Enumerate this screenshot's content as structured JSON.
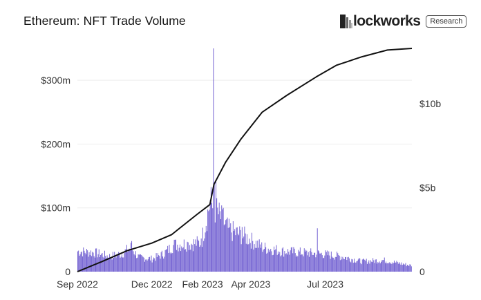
{
  "header": {
    "title": "Ethereum: NFT Trade Volume",
    "brand_name": "lockworks",
    "brand_badge": "Research"
  },
  "chart_data": {
    "type": "bar",
    "title": "Ethereum: NFT Trade Volume",
    "x_start": "2022-09-01",
    "x_end": "2023-10-15",
    "x_ticks": [
      {
        "date": "2022-09-01",
        "label": "Sep 2022"
      },
      {
        "date": "2022-12-01",
        "label": "Dec 2022"
      },
      {
        "date": "2023-02-01",
        "label": "Feb 2023"
      },
      {
        "date": "2023-04-01",
        "label": "Apr 2023"
      },
      {
        "date": "2023-07-01",
        "label": "Jul 2023"
      }
    ],
    "left_axis": {
      "ylim": [
        0,
        350
      ],
      "ticks": [
        0,
        100,
        200,
        300
      ],
      "tick_labels": [
        "0",
        "$100m",
        "$200m",
        "$300m"
      ]
    },
    "right_axis": {
      "ylim": [
        0,
        13.3
      ],
      "ticks": [
        0,
        5,
        10
      ],
      "tick_labels": [
        "0",
        "$5b",
        "$10b"
      ]
    },
    "grid": true,
    "bar_color": "#6d5bd0",
    "line_color": "#111111",
    "bars_daily_keypoints": [
      {
        "date": "2022-09-01",
        "value": 32
      },
      {
        "date": "2022-09-20",
        "value": 30
      },
      {
        "date": "2022-10-10",
        "value": 24
      },
      {
        "date": "2022-10-25",
        "value": 28
      },
      {
        "date": "2022-11-05",
        "value": 38
      },
      {
        "date": "2022-11-15",
        "value": 22
      },
      {
        "date": "2022-12-01",
        "value": 20
      },
      {
        "date": "2022-12-15",
        "value": 28
      },
      {
        "date": "2022-12-28",
        "value": 42
      },
      {
        "date": "2023-01-15",
        "value": 44
      },
      {
        "date": "2023-01-30",
        "value": 45
      },
      {
        "date": "2023-02-10",
        "value": 110
      },
      {
        "date": "2023-02-20",
        "value": 90
      },
      {
        "date": "2023-03-05",
        "value": 65
      },
      {
        "date": "2023-03-25",
        "value": 55
      },
      {
        "date": "2023-04-15",
        "value": 38
      },
      {
        "date": "2023-05-10",
        "value": 32
      },
      {
        "date": "2023-06-01",
        "value": 30
      },
      {
        "date": "2023-06-25",
        "value": 28
      },
      {
        "date": "2023-07-20",
        "value": 24
      },
      {
        "date": "2023-08-15",
        "value": 16
      },
      {
        "date": "2023-09-10",
        "value": 18
      },
      {
        "date": "2023-10-12",
        "value": 10
      }
    ],
    "bar_spikes": [
      {
        "date": "2022-11-06",
        "value": 48
      },
      {
        "date": "2022-12-28",
        "value": 50
      },
      {
        "date": "2023-01-14",
        "value": 46
      },
      {
        "date": "2023-01-30",
        "value": 52
      },
      {
        "date": "2023-02-14",
        "value": 350
      },
      {
        "date": "2023-02-15",
        "value": 140
      },
      {
        "date": "2023-02-17",
        "value": 142
      },
      {
        "date": "2023-02-26",
        "value": 100
      },
      {
        "date": "2023-03-21",
        "value": 70
      },
      {
        "date": "2023-06-21",
        "value": 68
      }
    ],
    "cumulative_line_keypoints": [
      {
        "date": "2022-09-01",
        "value": 0
      },
      {
        "date": "2022-10-01",
        "value": 0.6
      },
      {
        "date": "2022-11-01",
        "value": 1.25
      },
      {
        "date": "2022-12-01",
        "value": 1.7
      },
      {
        "date": "2022-12-25",
        "value": 2.2
      },
      {
        "date": "2023-01-25",
        "value": 3.4
      },
      {
        "date": "2023-02-10",
        "value": 4.0
      },
      {
        "date": "2023-02-15",
        "value": 5.2
      },
      {
        "date": "2023-03-01",
        "value": 6.5
      },
      {
        "date": "2023-03-20",
        "value": 7.9
      },
      {
        "date": "2023-04-15",
        "value": 9.5
      },
      {
        "date": "2023-05-15",
        "value": 10.5
      },
      {
        "date": "2023-06-20",
        "value": 11.6
      },
      {
        "date": "2023-07-15",
        "value": 12.3
      },
      {
        "date": "2023-08-15",
        "value": 12.8
      },
      {
        "date": "2023-09-15",
        "value": 13.2
      },
      {
        "date": "2023-10-15",
        "value": 13.3
      }
    ]
  }
}
